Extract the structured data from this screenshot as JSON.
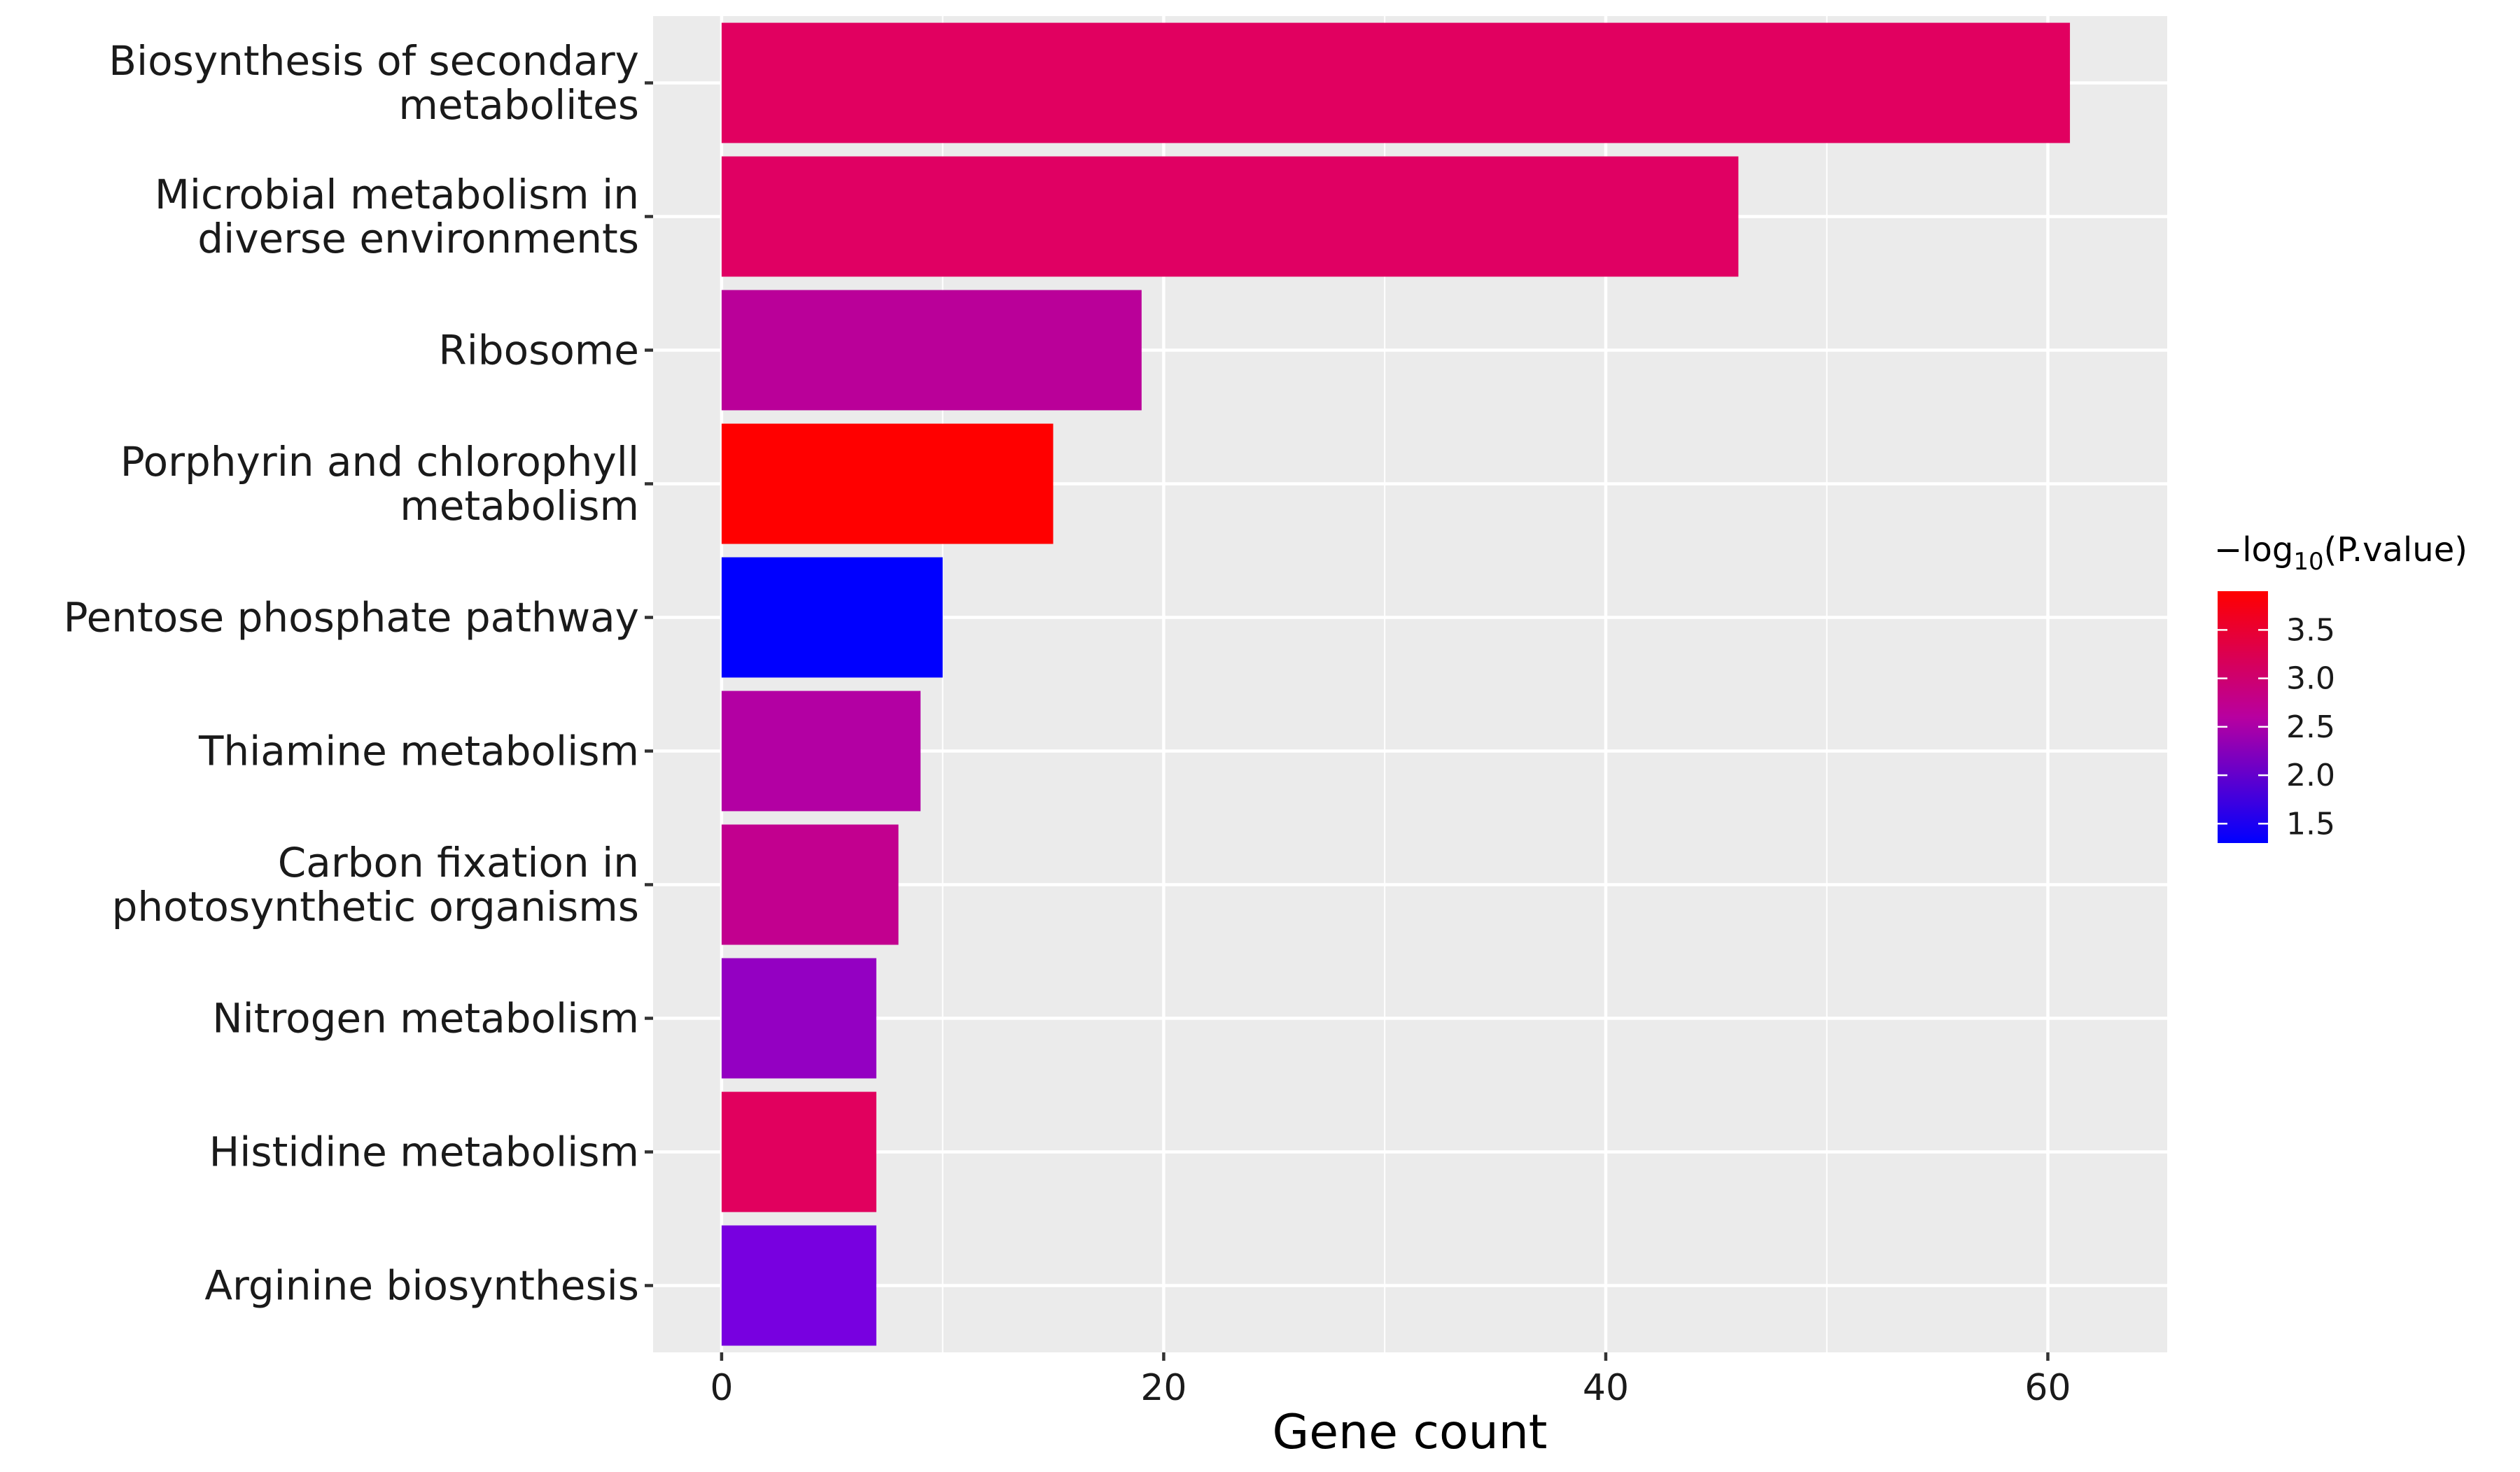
{
  "chart_data": {
    "type": "bar",
    "orientation": "horizontal",
    "xlabel": "Gene count",
    "ylabel": "",
    "xlim": [
      -3.1,
      65.4
    ],
    "x_ticks": [
      0,
      20,
      40,
      60
    ],
    "x_minor_grid": [
      10,
      30,
      50
    ],
    "grid": true,
    "categories": [
      "Biosynthesis of secondary\nmetabolites",
      "Microbial metabolism in\ndiverse environments",
      "Ribosome",
      "Porphyrin and chlorophyll\nmetabolism",
      "Pentose phosphate pathway",
      "Thiamine metabolism",
      "Carbon fixation in\nphotosynthetic organisms",
      "Nitrogen metabolism",
      "Histidine metabolism",
      "Arginine biosynthesis"
    ],
    "values": [
      61,
      46,
      19,
      15,
      10,
      9,
      8,
      7,
      7,
      7
    ],
    "color_values": [
      3.05,
      3.05,
      2.5,
      3.85,
      1.3,
      2.4,
      2.55,
      2.2,
      3.1,
      1.85
    ],
    "colors": [
      "#e10060",
      "#e00063",
      "#ba0099",
      "#ff0000",
      "#0000ff",
      "#b300a3",
      "#c2008f",
      "#9400c2",
      "#e1005e",
      "#7800e0"
    ],
    "legend": {
      "title_prefix": "−log",
      "title_sub": "10",
      "title_suffix": "(P.value)",
      "position": "right",
      "range": [
        1.3,
        3.9
      ],
      "ticks": [
        1.5,
        2.0,
        2.5,
        3.0,
        3.5
      ],
      "tick_labels": [
        "1.5",
        "2.0",
        "2.5",
        "3.0",
        "3.5"
      ],
      "low_color": "#0000ff",
      "high_color": "#ff0000"
    },
    "panel_color": "#ebebeb",
    "grid_color": "#ffffff"
  }
}
